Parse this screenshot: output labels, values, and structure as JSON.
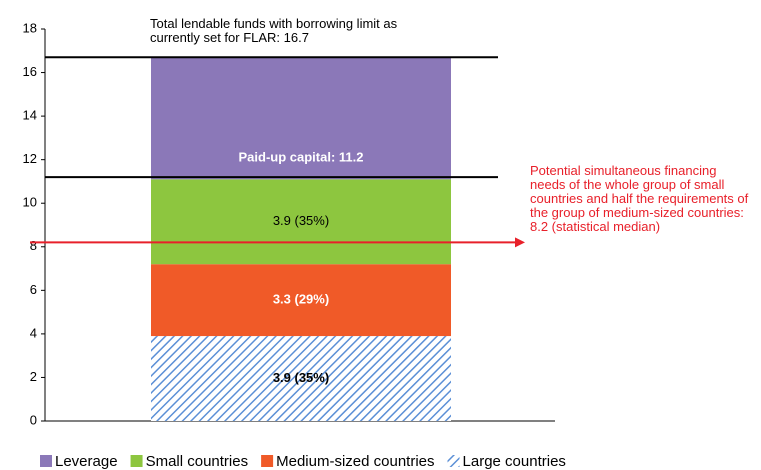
{
  "chart_data": {
    "type": "stacked_bar",
    "categories": [
      null
    ],
    "series": [
      {
        "name": "Leverage",
        "color": "#8b78b8",
        "values": [
          5.6
        ]
      },
      {
        "name": "Small countries",
        "color": "#8dc63f",
        "values": [
          3.9
        ],
        "value_labels": [
          "3.9 (35%)"
        ]
      },
      {
        "name": "Medium-sized countries",
        "color": "#f05a28",
        "values": [
          3.3
        ],
        "value_labels": [
          "3.3 (29%)"
        ]
      },
      {
        "name": "Large countries",
        "color": "#5b8fd6",
        "hatch": true,
        "values": [
          3.9
        ],
        "value_labels": [
          "3.9 (35%)"
        ]
      }
    ],
    "ylim": [
      0,
      18
    ],
    "yticks": [
      0,
      2,
      4,
      6,
      8,
      10,
      12,
      14,
      16,
      18
    ],
    "annotations": [
      {
        "text": "Total lendable funds with borrowing limit as currently set for FLAR: 16.7",
        "value": 16.7
      },
      {
        "text": "Paid-up capital: 11.2",
        "value": 11.2
      },
      {
        "text": "Potential simultaneous financing needs of the whole group of small countries and half the requirements of the group of medium-sized countries: 8.2 (statistical median)",
        "value": 8.2,
        "color": "#e8202a"
      }
    ]
  }
}
